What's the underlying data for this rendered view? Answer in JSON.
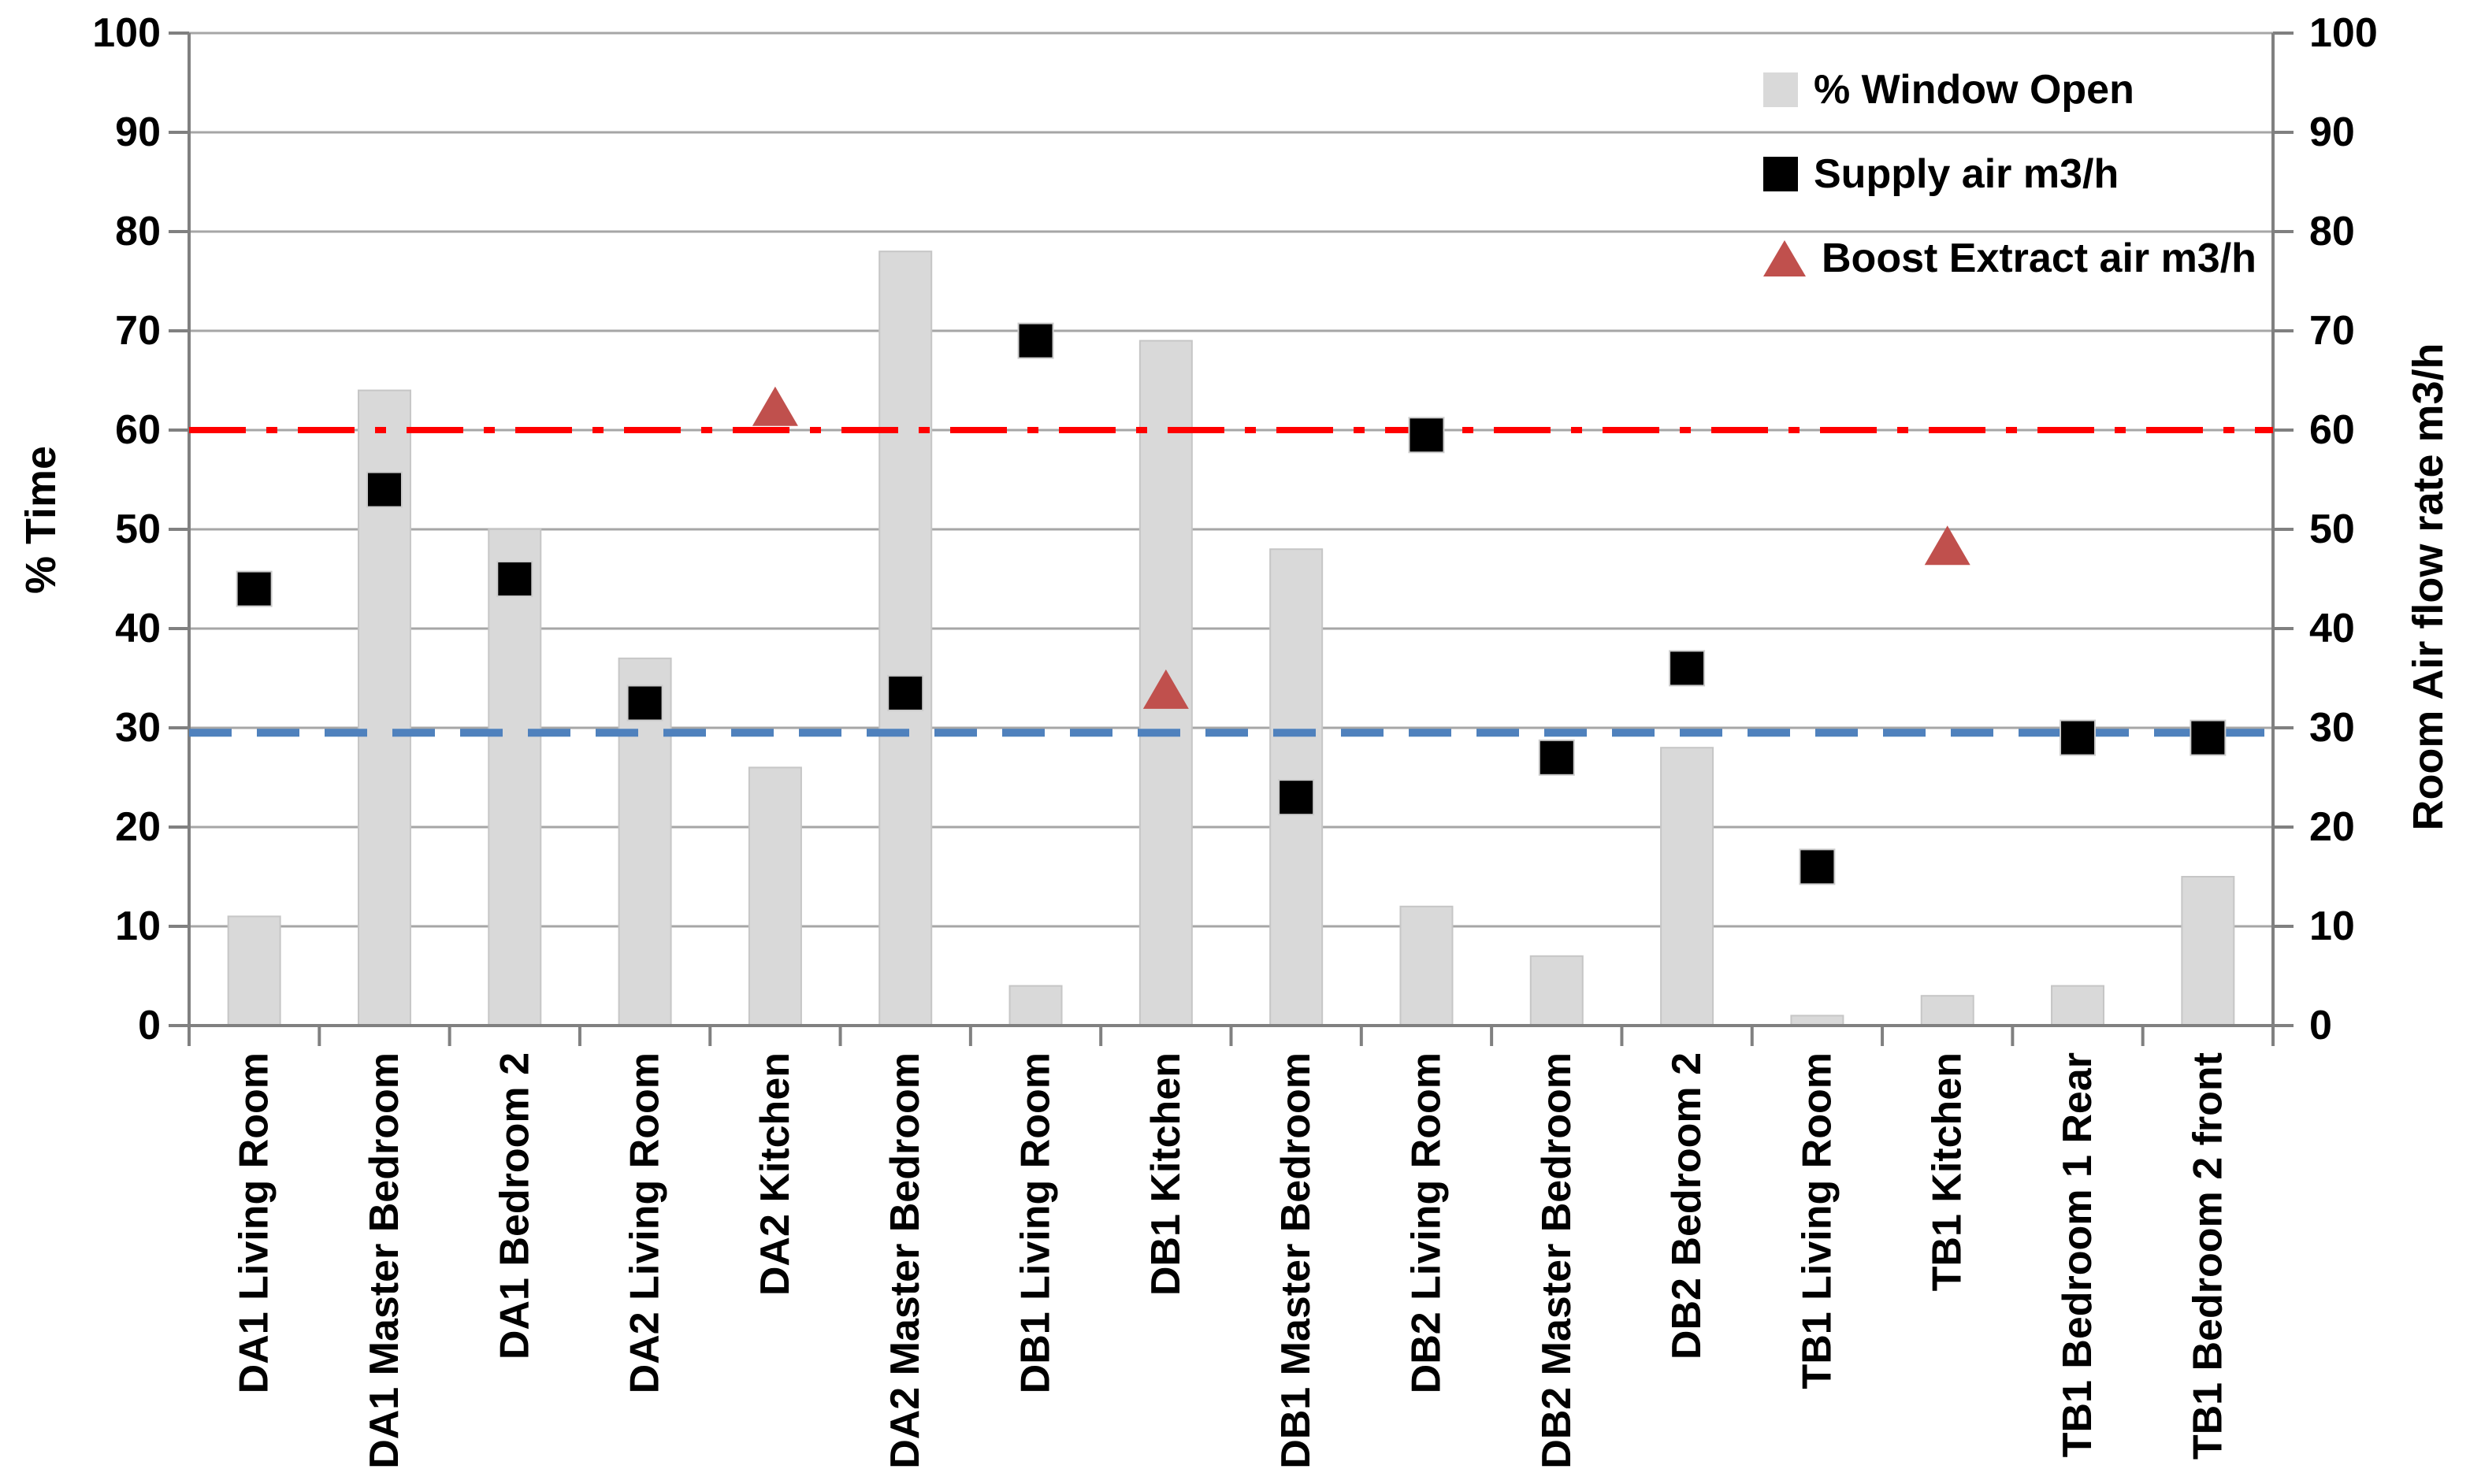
{
  "page": {
    "background": "#FFFFFF"
  },
  "chart_data": {
    "type": "bar",
    "subtype": "combo-column-and-scatter",
    "title": "",
    "categories": [
      "DA1 Living Room",
      "DA1 Master Bedroom",
      "DA1 Bedroom 2",
      "DA2 Living Room",
      "DA2 Kitchen",
      "DA2 Master Bedroom",
      "DB1 Living Room",
      "DB1 Kitchen",
      "DB1 Master Bedroom",
      "DB2 Living Room",
      "DB2 Master Bedroom",
      "DB2 Bedroom 2",
      "TB1 Living Room",
      "TB1 Kitchen",
      "TB1 Bedroom 1 Rear",
      "TB1 Bedroom 2 front"
    ],
    "series": [
      {
        "name": "% Window Open",
        "type": "bar",
        "marker": "square",
        "axis": "left",
        "color": "#D9D9D9",
        "values": [
          11,
          64,
          50,
          37,
          26,
          78,
          4,
          69,
          48,
          12,
          7,
          28,
          1,
          3,
          4,
          15
        ]
      },
      {
        "name": "Supply air m3/h",
        "type": "scatter",
        "marker": "square",
        "axis": "right",
        "color": "#000000",
        "values": [
          44,
          54,
          45,
          32.5,
          null,
          33.5,
          69,
          null,
          23,
          59.5,
          27,
          36,
          16,
          null,
          29,
          29
        ]
      },
      {
        "name": "Boost Extract air m3/h",
        "type": "scatter",
        "marker": "triangle",
        "axis": "right",
        "color": "#C0504D",
        "values": [
          null,
          null,
          null,
          null,
          62,
          null,
          null,
          33.5,
          null,
          null,
          null,
          null,
          null,
          48,
          null,
          null
        ]
      }
    ],
    "reference_lines": [
      {
        "name": "boost-threshold-line",
        "value": 60,
        "color": "#FF0000",
        "dash": "dash-dot",
        "width": 8
      },
      {
        "name": "supply-threshold-line",
        "value": 29.5,
        "color": "#4F81BD",
        "dash": "dash",
        "width": 10
      }
    ],
    "left_axis": {
      "label": "% Time",
      "min": 0,
      "max": 100,
      "step": 10
    },
    "right_axis": {
      "label": "Room Air flow rate m3/h",
      "min": 0,
      "max": 100,
      "step": 10
    },
    "grid": true,
    "grid_color": "#A6A6A6",
    "axis_color": "#808080",
    "legend_position": "top-right-inside"
  }
}
